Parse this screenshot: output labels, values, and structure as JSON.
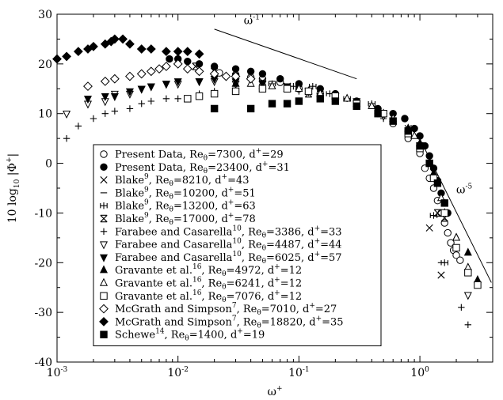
{
  "chart_data": {
    "type": "scatter",
    "xscale": "log",
    "xlim": [
      0.001,
      4
    ],
    "ylim": [
      -40,
      30
    ],
    "grid": false,
    "legend_position": "center-left",
    "xlabel": {
      "base": "ω",
      "sup": "+"
    },
    "ylabel": {
      "pre": "10 log",
      "sub": "10",
      "post": " |Φ",
      "sup": "+",
      "end": "|"
    },
    "x_ticks": [
      {
        "value": 0.001,
        "base": "10",
        "exp": "-3"
      },
      {
        "value": 0.01,
        "base": "10",
        "exp": "-2"
      },
      {
        "value": 0.1,
        "base": "10",
        "exp": "-1"
      },
      {
        "value": 1,
        "base": "10",
        "exp": "0"
      }
    ],
    "y_ticks": [
      "-40",
      "-30",
      "-20",
      "-10",
      "0",
      "10",
      "20",
      "30"
    ],
    "annotations": [
      {
        "id": "omega-minus-1",
        "base": "ω",
        "sup": "-1",
        "line": [
          [
            0.02,
            27
          ],
          [
            0.3,
            17
          ]
        ],
        "label_at": [
          0.035,
          28
        ]
      },
      {
        "id": "omega-minus-5",
        "base": "ω",
        "sup": "-5",
        "line": [
          [
            0.95,
            6
          ],
          [
            3.9,
            -24
          ]
        ],
        "label_at": [
          2.0,
          -6
        ]
      }
    ],
    "series": [
      {
        "id": "present-7300",
        "marker": "circle-open",
        "prefix": "Present Data, Re",
        "ref": "",
        "rest": "=7300, d",
        "last": "=29",
        "points": [
          [
            0.022,
            18.2
          ],
          [
            0.03,
            17.8
          ],
          [
            0.04,
            17.3
          ],
          [
            0.05,
            17
          ],
          [
            0.07,
            16.3
          ],
          [
            0.1,
            15
          ],
          [
            0.15,
            14
          ],
          [
            0.2,
            13
          ],
          [
            0.3,
            11.5
          ],
          [
            0.45,
            10
          ],
          [
            0.6,
            8
          ],
          [
            0.8,
            5
          ],
          [
            1.0,
            2
          ],
          [
            1.1,
            -1
          ],
          [
            1.2,
            -3
          ],
          [
            1.3,
            -5
          ],
          [
            1.4,
            -7.5
          ],
          [
            1.5,
            -10
          ],
          [
            1.6,
            -12
          ],
          [
            1.7,
            -14
          ],
          [
            1.8,
            -16
          ],
          [
            1.9,
            -17.5
          ],
          [
            2.0,
            -18.5
          ],
          [
            2.15,
            -19.5
          ]
        ]
      },
      {
        "id": "present-23400",
        "marker": "circle-filled",
        "prefix": "Present Data, Re",
        "ref": "",
        "rest": "=23400, d",
        "last": "=31",
        "points": [
          [
            0.0085,
            21
          ],
          [
            0.01,
            21
          ],
          [
            0.012,
            20.5
          ],
          [
            0.015,
            20
          ],
          [
            0.02,
            19.5
          ],
          [
            0.03,
            19
          ],
          [
            0.04,
            18.5
          ],
          [
            0.05,
            18
          ],
          [
            0.07,
            17
          ],
          [
            0.1,
            16
          ],
          [
            0.15,
            15
          ],
          [
            0.2,
            14
          ],
          [
            0.3,
            12.5
          ],
          [
            0.45,
            11
          ],
          [
            0.6,
            10
          ],
          [
            0.75,
            9
          ],
          [
            0.9,
            7
          ],
          [
            1.0,
            5.5
          ],
          [
            1.1,
            3.5
          ],
          [
            1.2,
            1.5
          ],
          [
            1.3,
            -1
          ],
          [
            1.4,
            -3.5
          ],
          [
            1.5,
            -6
          ],
          [
            1.6,
            -8
          ],
          [
            1.7,
            -10
          ]
        ]
      },
      {
        "id": "blake-8210",
        "marker": "x",
        "prefix": "Blake",
        "ref": "9",
        "rest": ", Re",
        "tail": "=8210, d",
        "last": "=43",
        "points": [
          [
            0.02,
            18.5
          ],
          [
            0.03,
            17
          ],
          [
            0.05,
            16.5
          ],
          [
            0.08,
            15.5
          ],
          [
            0.12,
            14.5
          ],
          [
            0.2,
            13
          ],
          [
            0.3,
            12
          ],
          [
            0.5,
            10
          ],
          [
            0.8,
            7
          ],
          [
            1.2,
            -13
          ],
          [
            1.5,
            -22.5
          ]
        ]
      },
      {
        "id": "blake-10200",
        "marker": "dash",
        "prefix": "Blake",
        "ref": "9",
        "rest": ", Re",
        "tail": "=10200, d",
        "last": "=51",
        "points": [
          [
            0.025,
            17.5
          ],
          [
            0.04,
            17
          ],
          [
            0.06,
            16.5
          ],
          [
            0.1,
            15.5
          ],
          [
            0.15,
            14.5
          ],
          [
            0.25,
            13
          ],
          [
            0.4,
            11.5
          ],
          [
            0.6,
            9
          ],
          [
            1.5,
            -20
          ]
        ]
      },
      {
        "id": "blake-13200",
        "marker": "plus-box",
        "prefix": "Blake",
        "ref": "9",
        "rest": ", Re",
        "tail": "=13200, d",
        "last": "=63",
        "points": [
          [
            0.06,
            16
          ],
          [
            0.09,
            15.5
          ],
          [
            0.13,
            15.5
          ],
          [
            0.18,
            14
          ],
          [
            0.25,
            13
          ],
          [
            0.4,
            12
          ],
          [
            1.3,
            -10.5
          ],
          [
            1.6,
            -20
          ]
        ]
      },
      {
        "id": "blake-17000",
        "marker": "x-bar",
        "prefix": "Blake",
        "ref": "9",
        "rest": ", Re",
        "tail": "=17000, d",
        "last": "=78",
        "points": [
          [
            0.014,
            19.5
          ],
          [
            0.02,
            18.5
          ],
          [
            0.03,
            17.5
          ],
          [
            0.05,
            16
          ],
          [
            0.08,
            15
          ],
          [
            0.12,
            14
          ],
          [
            0.2,
            13
          ],
          [
            1.4,
            -10
          ],
          [
            1.6,
            -11
          ]
        ]
      },
      {
        "id": "farabee-3386",
        "marker": "plus",
        "prefix": "Farabee and Casarella",
        "ref": "10",
        "rest": ", Re",
        "tail": "=3386, d",
        "last": "=33",
        "points": [
          [
            0.0012,
            5
          ],
          [
            0.0015,
            7.5
          ],
          [
            0.002,
            9
          ],
          [
            0.0025,
            10
          ],
          [
            0.003,
            10.5
          ],
          [
            0.004,
            11
          ],
          [
            0.005,
            12
          ],
          [
            0.006,
            12.5
          ],
          [
            0.008,
            13
          ],
          [
            0.01,
            13
          ],
          [
            0.015,
            14
          ],
          [
            0.02,
            14.5
          ],
          [
            0.03,
            15
          ],
          [
            0.05,
            15
          ],
          [
            0.1,
            14.5
          ],
          [
            0.15,
            14
          ],
          [
            0.2,
            13
          ],
          [
            0.3,
            12
          ],
          [
            0.5,
            9
          ],
          [
            2.2,
            -29
          ],
          [
            2.5,
            -32.5
          ]
        ]
      },
      {
        "id": "farabee-4487",
        "marker": "triangle-down-open",
        "prefix": "Farabee and Casarella",
        "ref": "10",
        "rest": ", Re",
        "tail": "=4487, d",
        "last": "=44",
        "points": [
          [
            0.0012,
            10
          ],
          [
            0.0018,
            12
          ],
          [
            0.0025,
            12.5
          ],
          [
            0.003,
            14
          ],
          [
            0.004,
            14
          ],
          [
            0.005,
            15
          ],
          [
            0.006,
            15.5
          ],
          [
            0.008,
            16
          ],
          [
            0.01,
            16
          ],
          [
            0.015,
            16.5
          ],
          [
            0.02,
            16.5
          ],
          [
            0.03,
            16
          ],
          [
            0.05,
            16
          ],
          [
            0.08,
            15.5
          ],
          [
            0.12,
            14.5
          ],
          [
            0.2,
            13.5
          ],
          [
            0.3,
            12
          ],
          [
            0.5,
            9.5
          ],
          [
            2.5,
            -26.5
          ]
        ]
      },
      {
        "id": "farabee-6025",
        "marker": "triangle-down-filled",
        "prefix": "Farabee and Casarella",
        "ref": "10",
        "rest": ", Re",
        "tail": "=6025, d",
        "last": "=57",
        "points": [
          [
            0.0018,
            13
          ],
          [
            0.0025,
            13.5
          ],
          [
            0.003,
            13.5
          ],
          [
            0.004,
            14.5
          ],
          [
            0.005,
            15
          ],
          [
            0.006,
            15.5
          ],
          [
            0.008,
            16
          ],
          [
            0.01,
            16.5
          ],
          [
            0.015,
            16.5
          ],
          [
            0.02,
            17
          ],
          [
            0.03,
            16.5
          ],
          [
            0.05,
            16
          ],
          [
            0.08,
            15.5
          ],
          [
            0.12,
            14.5
          ],
          [
            0.2,
            13.5
          ],
          [
            0.3,
            12.5
          ],
          [
            0.5,
            10
          ]
        ]
      },
      {
        "id": "gravante-4972",
        "marker": "triangle-up-filled",
        "prefix": "Gravante et al.",
        "ref": "16",
        "rest": ", Re",
        "tail": "=4972, d",
        "last": "=12",
        "points": [
          [
            0.03,
            16
          ],
          [
            0.05,
            15.5
          ],
          [
            0.08,
            15
          ],
          [
            0.12,
            14.5
          ],
          [
            0.2,
            13.5
          ],
          [
            0.3,
            12
          ],
          [
            0.5,
            10
          ],
          [
            0.8,
            7
          ],
          [
            1.0,
            4
          ],
          [
            1.3,
            -2
          ],
          [
            1.6,
            -10
          ],
          [
            2.0,
            -15
          ],
          [
            2.5,
            -18
          ],
          [
            3.0,
            -23.5
          ]
        ]
      },
      {
        "id": "gravante-6241",
        "marker": "triangle-up-open",
        "prefix": "Gravante et al.",
        "ref": "16",
        "rest": ", Re",
        "tail": "=6241, d",
        "last": "=12",
        "points": [
          [
            0.04,
            16
          ],
          [
            0.06,
            15.5
          ],
          [
            0.1,
            15
          ],
          [
            0.15,
            14
          ],
          [
            0.25,
            13
          ],
          [
            0.4,
            11.5
          ],
          [
            0.6,
            9
          ],
          [
            0.9,
            5.5
          ],
          [
            1.2,
            0
          ],
          [
            1.5,
            -7
          ],
          [
            2.0,
            -15
          ],
          [
            2.5,
            -21
          ]
        ]
      },
      {
        "id": "gravante-7076",
        "marker": "square-open",
        "prefix": "Gravante et al.",
        "ref": "16",
        "rest": ", Re",
        "tail": "=7076, d",
        "last": "=12",
        "points": [
          [
            0.012,
            13
          ],
          [
            0.015,
            13.5
          ],
          [
            0.02,
            14
          ],
          [
            0.03,
            14.5
          ],
          [
            0.05,
            15
          ],
          [
            0.08,
            15
          ],
          [
            0.12,
            14.5
          ],
          [
            0.2,
            13.5
          ],
          [
            0.3,
            12
          ],
          [
            0.5,
            10
          ],
          [
            0.8,
            6
          ],
          [
            1.0,
            3
          ],
          [
            1.3,
            -3
          ],
          [
            1.6,
            -10
          ],
          [
            2.0,
            -17
          ],
          [
            2.5,
            -22
          ],
          [
            3.0,
            -24.5
          ]
        ]
      },
      {
        "id": "mcgrath-7010",
        "marker": "diamond-open",
        "prefix": "McGrath and Simpson",
        "ref": "7",
        "rest": ", Re",
        "tail": "=7010, d",
        "last": "=27",
        "points": [
          [
            0.0018,
            15.5
          ],
          [
            0.0025,
            16.5
          ],
          [
            0.003,
            17
          ],
          [
            0.004,
            17.5
          ],
          [
            0.005,
            18
          ],
          [
            0.006,
            18.5
          ],
          [
            0.007,
            19
          ],
          [
            0.008,
            19.5
          ],
          [
            0.01,
            20
          ],
          [
            0.012,
            19
          ],
          [
            0.015,
            18.5
          ],
          [
            0.02,
            18
          ],
          [
            0.025,
            17.5
          ],
          [
            0.03,
            17.5
          ],
          [
            0.04,
            17
          ]
        ]
      },
      {
        "id": "mcgrath-18820",
        "marker": "diamond-filled",
        "prefix": "McGrath and Simpson",
        "ref": "7",
        "rest": ", Re",
        "tail": "=18820, d",
        "last": "=35",
        "points": [
          [
            0.001,
            21
          ],
          [
            0.0012,
            21.5
          ],
          [
            0.0015,
            22.5
          ],
          [
            0.0018,
            23
          ],
          [
            0.002,
            23.5
          ],
          [
            0.0025,
            24
          ],
          [
            0.0028,
            24.5
          ],
          [
            0.003,
            25
          ],
          [
            0.0035,
            25
          ],
          [
            0.004,
            24
          ],
          [
            0.005,
            23
          ],
          [
            0.006,
            23
          ],
          [
            0.008,
            22.5
          ],
          [
            0.01,
            22.5
          ],
          [
            0.012,
            22.5
          ],
          [
            0.015,
            22
          ]
        ]
      },
      {
        "id": "schewe-1400",
        "marker": "square-filled",
        "prefix": "Schewe",
        "ref": "14",
        "rest": ", Re",
        "tail": "=1400, d",
        "last": "=19",
        "points": [
          [
            0.02,
            11
          ],
          [
            0.04,
            11
          ],
          [
            0.06,
            12
          ],
          [
            0.08,
            12
          ],
          [
            0.1,
            12.5
          ],
          [
            0.15,
            13
          ],
          [
            0.2,
            12.5
          ],
          [
            0.3,
            11.5
          ],
          [
            0.45,
            10
          ],
          [
            0.6,
            8.5
          ],
          [
            0.8,
            6.5
          ],
          [
            1.0,
            3.5
          ],
          [
            1.2,
            0
          ],
          [
            1.4,
            -4
          ],
          [
            1.6,
            -8
          ]
        ]
      }
    ]
  }
}
